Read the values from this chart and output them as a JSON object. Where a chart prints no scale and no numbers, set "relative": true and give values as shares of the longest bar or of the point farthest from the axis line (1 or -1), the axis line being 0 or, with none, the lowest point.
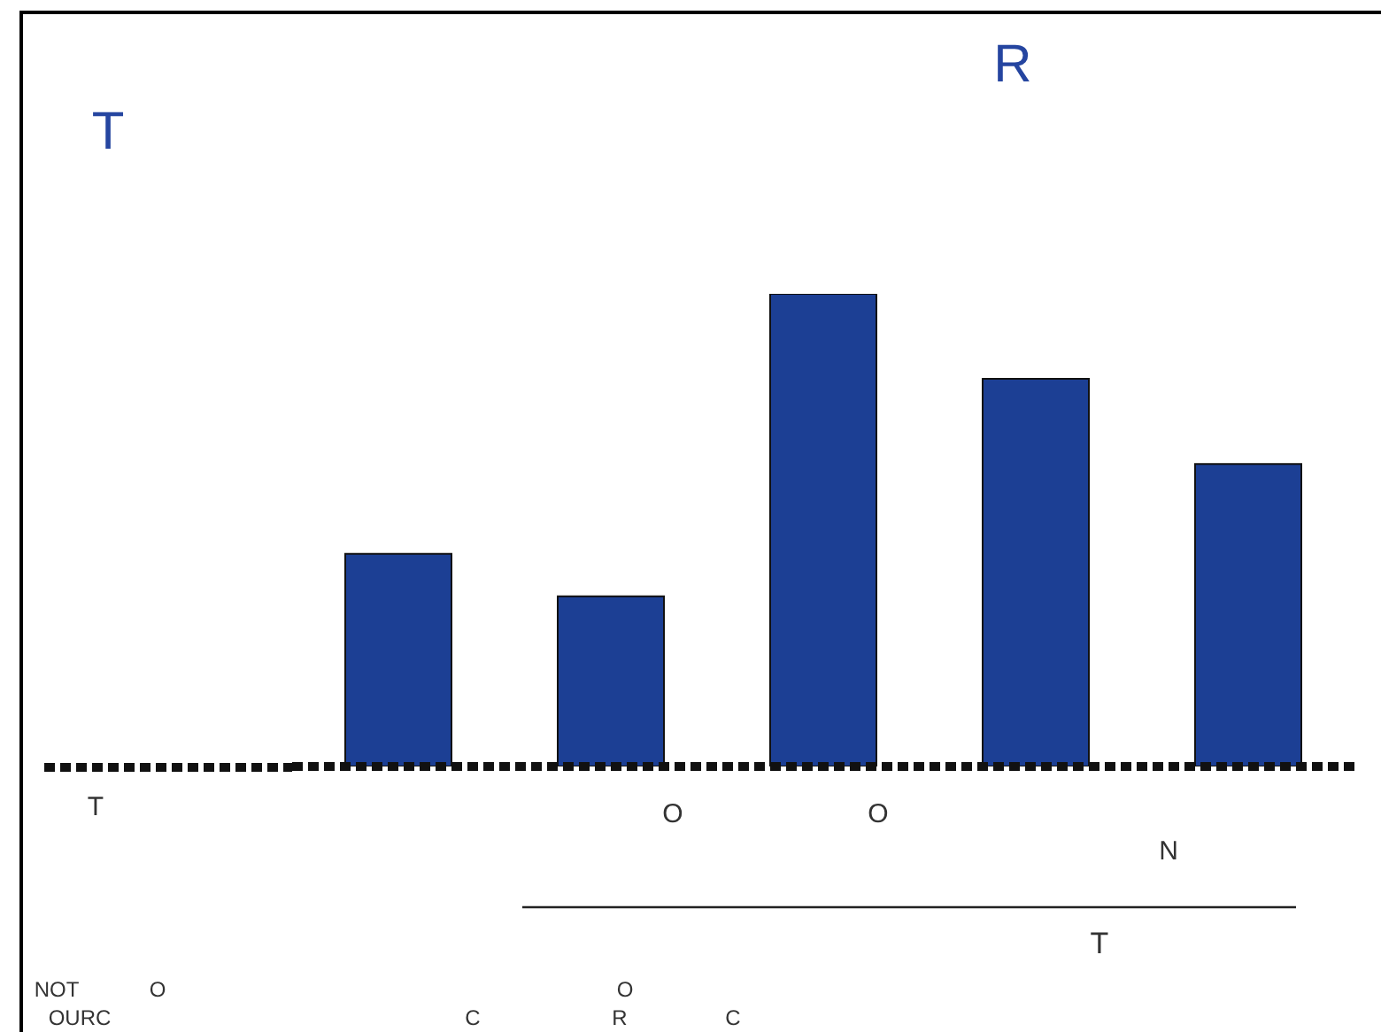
{
  "chart_data": {
    "type": "bar",
    "relative": true,
    "categories": [
      null,
      null,
      null,
      null,
      null
    ],
    "color": "#1c3f94",
    "values": [
      0.45,
      0.36,
      1,
      0.82,
      0.64
    ],
    "annotations": [
      "T",
      "R",
      "T",
      "O",
      "O",
      "N",
      "T",
      "NOT",
      "O",
      "O",
      "OURC",
      "C",
      "R",
      "C"
    ]
  }
}
